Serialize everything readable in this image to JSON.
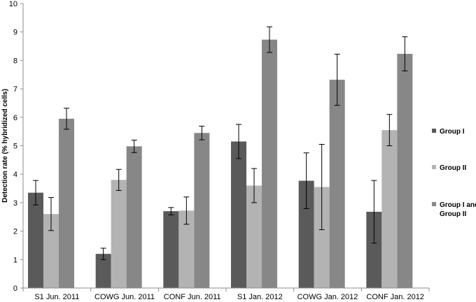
{
  "chart_data": {
    "type": "bar",
    "title": "",
    "xlabel": "",
    "ylabel": "Detection rate (% hybridized cells)",
    "ylim": [
      0,
      10
    ],
    "yticks": [
      0,
      1,
      2,
      3,
      4,
      5,
      6,
      7,
      8,
      9,
      10
    ],
    "grid": false,
    "legend_position": "right",
    "categories": [
      "S1 Jun. 2011",
      "COWG Jun. 2011",
      "CONF Jun. 2011",
      "S1 Jan. 2012",
      "COWG Jan. 2012",
      "CONF Jan. 2012"
    ],
    "series": [
      {
        "name": "Group I",
        "legend_lines": [
          "Group I"
        ],
        "color": "#5a5a5a",
        "values": [
          3.35,
          1.2,
          2.7,
          5.15,
          3.77,
          2.68
        ],
        "error": [
          0.43,
          0.2,
          0.13,
          0.6,
          0.98,
          1.1
        ]
      },
      {
        "name": "Group II",
        "legend_lines": [
          "Group II"
        ],
        "color": "#b3b3b3",
        "values": [
          2.6,
          3.8,
          2.72,
          3.6,
          3.55,
          5.55
        ],
        "error": [
          0.58,
          0.37,
          0.48,
          0.6,
          1.5,
          0.55
        ]
      },
      {
        "name": "Group I and Group II",
        "legend_lines": [
          "Group I and",
          "Group II"
        ],
        "color": "#878787",
        "values": [
          5.95,
          4.98,
          5.45,
          8.73,
          7.32,
          8.23
        ],
        "error": [
          0.37,
          0.22,
          0.24,
          0.45,
          0.9,
          0.6
        ]
      }
    ]
  }
}
